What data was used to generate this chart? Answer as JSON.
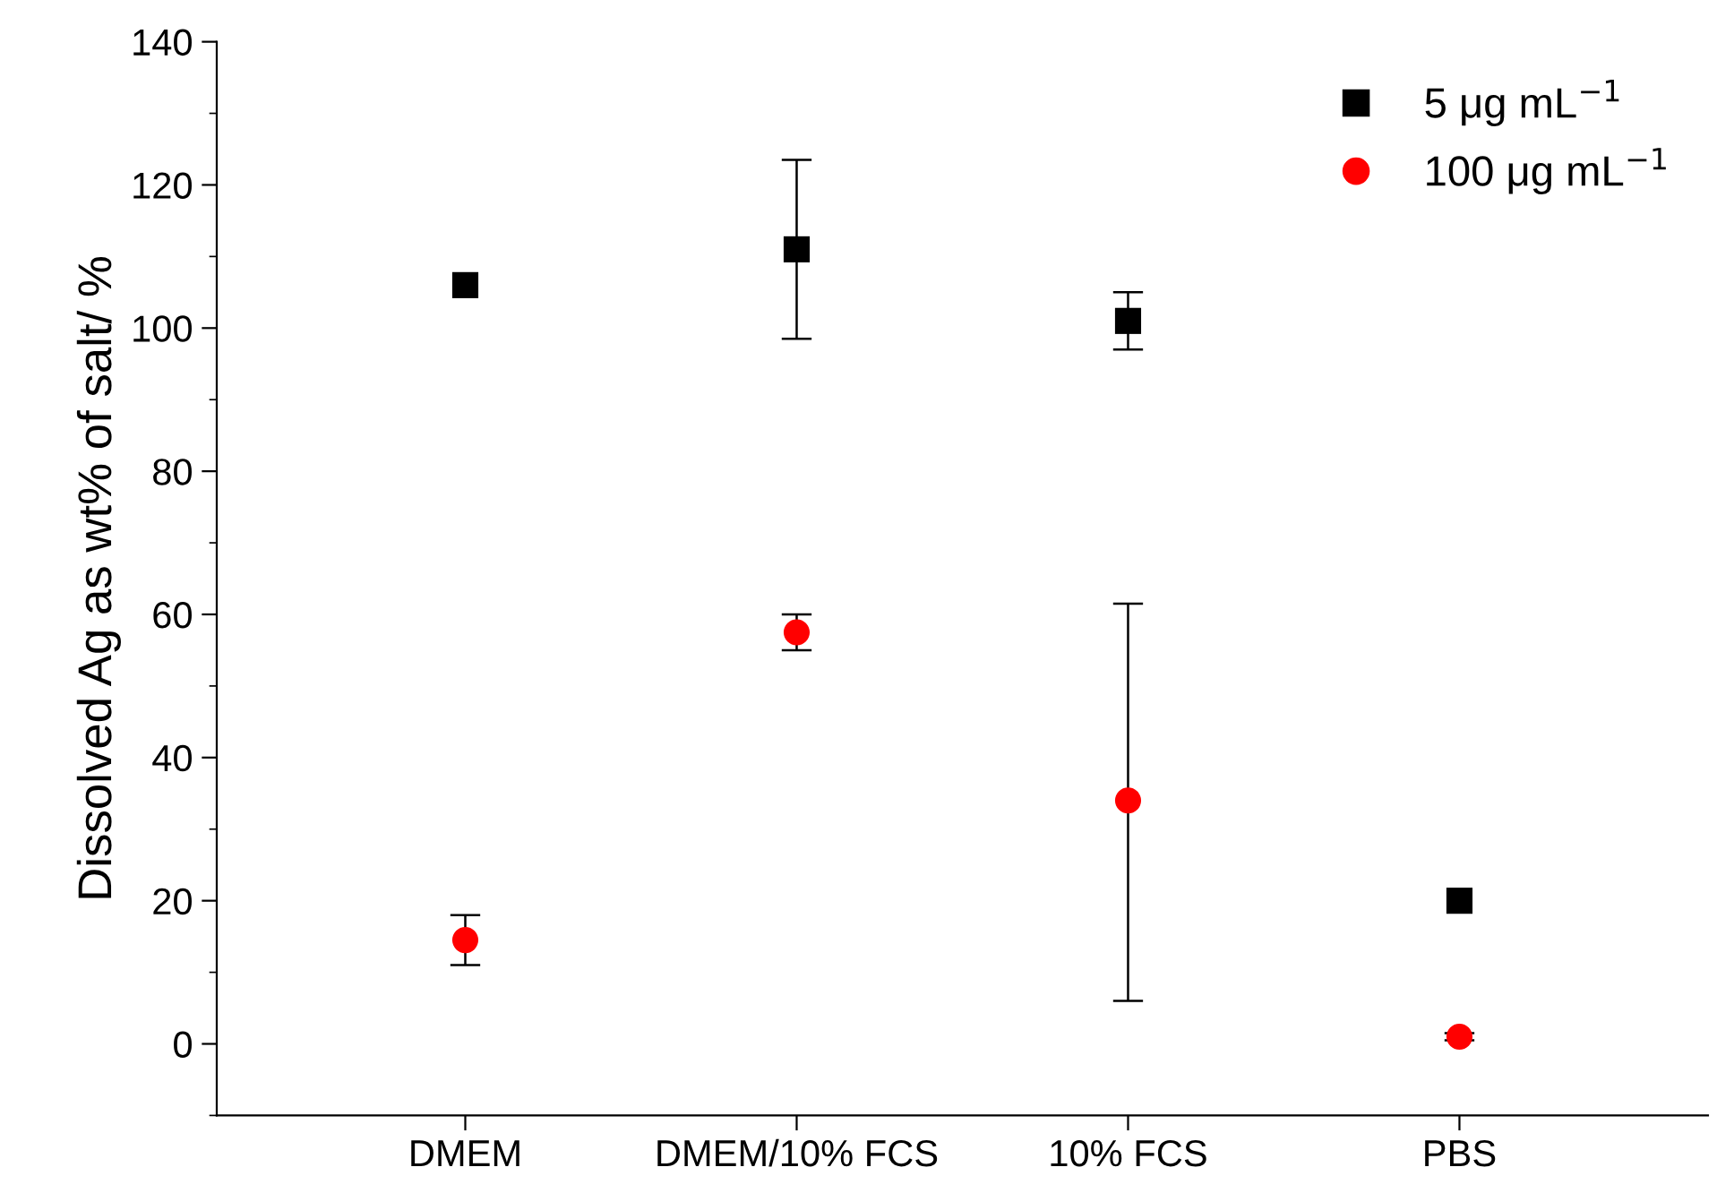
{
  "chart_data": {
    "type": "scatter",
    "ylabel": "Dissolved Ag as wt% of salt/ %",
    "categories": [
      "DMEM",
      "DMEM/10% FCS",
      "10% FCS",
      "PBS"
    ],
    "series": [
      {
        "name": "5 μg mL$^{−1}$",
        "color": "#000000",
        "marker": "square",
        "values": [
          106,
          111,
          101,
          20
        ],
        "errors": [
          null,
          [
            98.5,
            123.5
          ],
          [
            97,
            105
          ],
          null
        ]
      },
      {
        "name": "100 μg mL$^{−1}$",
        "color": "#ff0000",
        "marker": "circle",
        "values": [
          14.5,
          57.5,
          34,
          1
        ],
        "errors": [
          [
            11,
            18
          ],
          [
            55,
            60
          ],
          [
            6,
            61.5
          ],
          [
            0.5,
            1.5
          ]
        ]
      }
    ],
    "ylim": [
      -10,
      140
    ],
    "yticks": [
      0,
      20,
      40,
      60,
      80,
      100,
      120,
      140
    ],
    "grid": false,
    "legend": "top right"
  }
}
